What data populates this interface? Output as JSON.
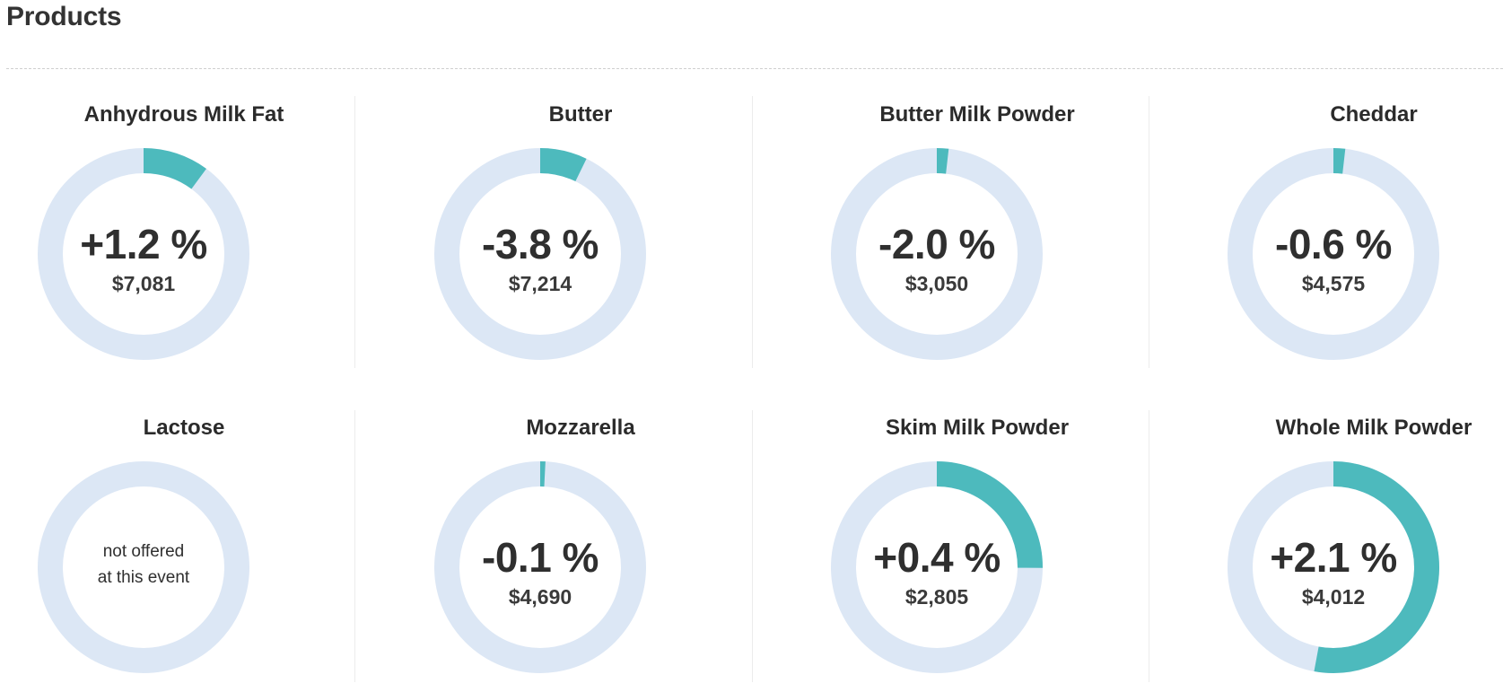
{
  "page": {
    "title": "Products"
  },
  "colors": {
    "track": "#dce7f5",
    "fill": "#4dbabd",
    "text": "#2f2f2f"
  },
  "products": [
    {
      "name": "Anhydrous Milk Fat",
      "change": "+1.2 %",
      "price": "$7,081",
      "share": 0.101
    },
    {
      "name": "Butter",
      "change": "-3.8 %",
      "price": "$7,214",
      "share": 0.072
    },
    {
      "name": "Butter Milk Powder",
      "change": "-2.0 %",
      "price": "$3,050",
      "share": 0.018
    },
    {
      "name": "Cheddar",
      "change": "-0.6 %",
      "price": "$4,575",
      "share": 0.018
    },
    {
      "name": "Lactose",
      "note_line1": "not offered",
      "note_line2": "at this event",
      "share": 0
    },
    {
      "name": "Mozzarella",
      "change": "-0.1 %",
      "price": "$4,690",
      "share": 0.008
    },
    {
      "name": "Skim Milk Powder",
      "change": "+0.4 %",
      "price": "$2,805",
      "share": 0.251
    },
    {
      "name": "Whole Milk Powder",
      "change": "+2.1 %",
      "price": "$4,012",
      "share": 0.529
    }
  ]
}
